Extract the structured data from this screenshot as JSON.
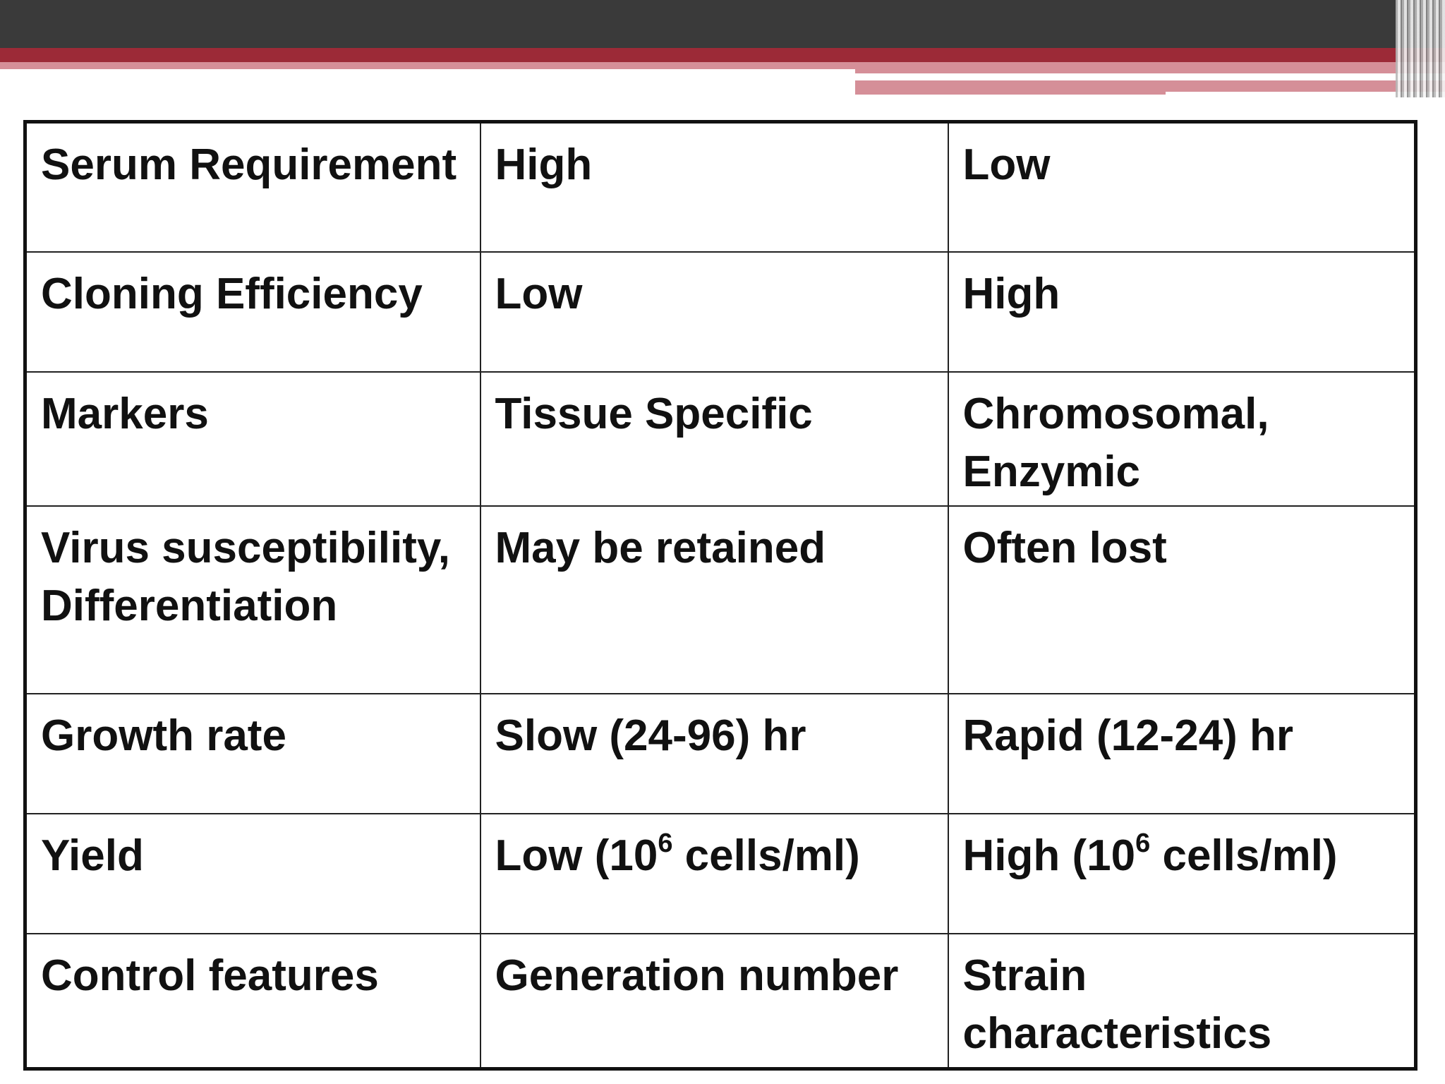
{
  "theme": {
    "header_dark": "#3a3a3a",
    "header_red": "#9c2a37",
    "header_pink": "#d58f98",
    "text_color": "#111111",
    "border_color": "#111111"
  },
  "table": {
    "rows": [
      {
        "feature": "Serum Requirement",
        "col_a": "High",
        "col_b": "Low"
      },
      {
        "feature": "Cloning Efficiency",
        "col_a": "Low",
        "col_b": "High"
      },
      {
        "feature": "Markers",
        "col_a": "Tissue Specific",
        "col_b": "Chromosomal, Enzymic"
      },
      {
        "feature": "Virus susceptibility, Differentiation",
        "col_a": "May be retained",
        "col_b": "Often lost"
      },
      {
        "feature": "Growth rate",
        "col_a": "Slow (24-96) hr",
        "col_b": "Rapid (12-24) hr"
      },
      {
        "feature": "Yield",
        "col_a_parts": {
          "before": "Low (10",
          "sup": "6",
          "after": " cells/ml)"
        },
        "col_b_parts": {
          "before": "High (10",
          "sup": "6",
          "after": " cells/ml)"
        }
      },
      {
        "feature": "Control features",
        "col_a": "Generation number",
        "col_b": "Strain characteristics"
      }
    ]
  }
}
